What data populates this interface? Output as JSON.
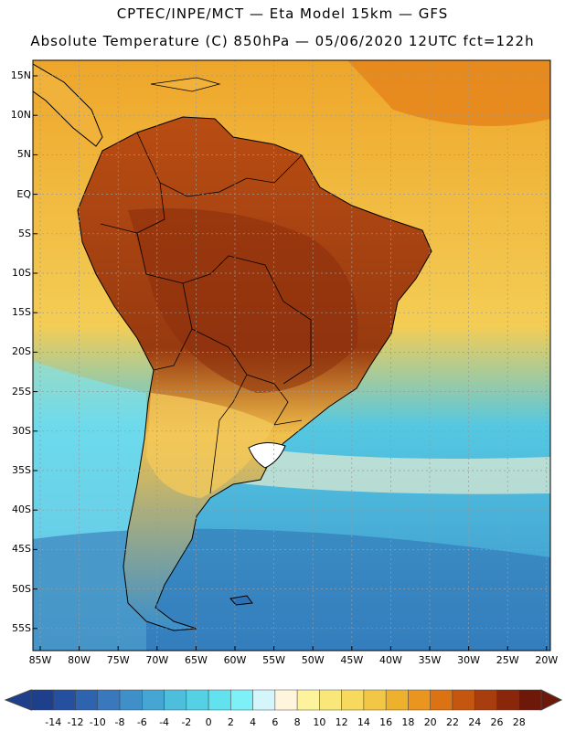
{
  "title_line1": "CPTEC/INPE/MCT —  Eta Model 15km — GFS",
  "title_line2": "Absolute Temperature (C) 850hPa — 05/06/2020 12UTC fct=122h",
  "lat_labels": [
    "15N",
    "10N",
    "5N",
    "EQ",
    "5S",
    "10S",
    "15S",
    "20S",
    "25S",
    "30S",
    "35S",
    "40S",
    "45S",
    "50S",
    "55S"
  ],
  "lon_labels": [
    "85W",
    "80W",
    "75W",
    "70W",
    "65W",
    "60W",
    "55W",
    "50W",
    "45W",
    "40W",
    "35W",
    "30W",
    "25W",
    "20W"
  ],
  "colorbar": {
    "ticks": [
      "-14",
      "-12",
      "-10",
      "-8",
      "-6",
      "-4",
      "-2",
      "0",
      "2",
      "4",
      "6",
      "8",
      "10",
      "12",
      "14",
      "16",
      "18",
      "20",
      "22",
      "24",
      "26",
      "28"
    ],
    "colors": [
      "#1d3f8c",
      "#25509f",
      "#2e63ae",
      "#3a78bd",
      "#3f8fc9",
      "#45a6d4",
      "#4ebedd",
      "#55d1e6",
      "#62e2ef",
      "#7df0f8",
      "#d4f6fb",
      "#fff5dc",
      "#fdf39c",
      "#fae779",
      "#f7d95e",
      "#f3c746",
      "#eeb12d",
      "#e99520",
      "#db7213",
      "#c5560f",
      "#a83d0d",
      "#8a270b",
      "#6e1809"
    ]
  },
  "map_legend": {
    "ocean_tropical": "#eea62a",
    "ocean_subtropical": "#f4cd55",
    "ocean_midlat": "#54c8e2",
    "ocean_south": "#3a8fca",
    "land_hot": "#b94d13",
    "land_core": "#983a10",
    "land_south": "#f2c14c"
  }
}
